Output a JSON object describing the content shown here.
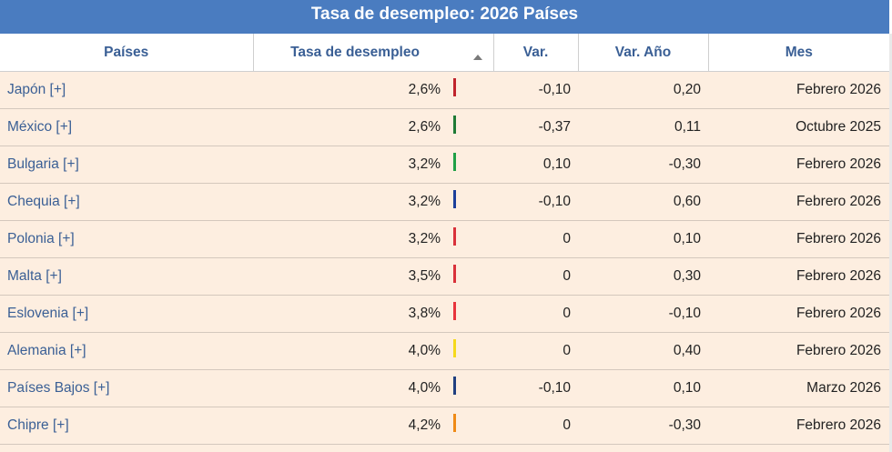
{
  "title": "Tasa de desempleo: 2026 Países",
  "headers": {
    "country": "Países",
    "rate": "Tasa de desempleo",
    "var": "Var.",
    "var_year": "Var. Año",
    "month": "Mes"
  },
  "rows": [
    {
      "country": "Japón [+]",
      "rate": "2,6%",
      "bar_color": "#c0242c",
      "var": "-0,10",
      "var_year": "0,20",
      "month": "Febrero 2026"
    },
    {
      "country": "México [+]",
      "rate": "2,6%",
      "bar_color": "#1e7a35",
      "var": "-0,37",
      "var_year": "0,11",
      "month": "Octubre 2025"
    },
    {
      "country": "Bulgaria [+]",
      "rate": "3,2%",
      "bar_color": "#1fa046",
      "var": "0,10",
      "var_year": "-0,30",
      "month": "Febrero 2026"
    },
    {
      "country": "Chequia [+]",
      "rate": "3,2%",
      "bar_color": "#1c3f9a",
      "var": "-0,10",
      "var_year": "0,60",
      "month": "Febrero 2026"
    },
    {
      "country": "Polonia [+]",
      "rate": "3,2%",
      "bar_color": "#d9313a",
      "var": "0",
      "var_year": "0,10",
      "month": "Febrero 2026"
    },
    {
      "country": "Malta [+]",
      "rate": "3,5%",
      "bar_color": "#d9313a",
      "var": "0",
      "var_year": "0,30",
      "month": "Febrero 2026"
    },
    {
      "country": "Eslovenia [+]",
      "rate": "3,8%",
      "bar_color": "#e8343c",
      "var": "0",
      "var_year": "-0,10",
      "month": "Febrero 2026"
    },
    {
      "country": "Alemania [+]",
      "rate": "4,0%",
      "bar_color": "#f5d91c",
      "var": "0",
      "var_year": "0,40",
      "month": "Febrero 2026"
    },
    {
      "country": "Países Bajos [+]",
      "rate": "4,0%",
      "bar_color": "#203f80",
      "var": "-0,10",
      "var_year": "0,10",
      "month": "Marzo 2026"
    },
    {
      "country": "Chipre [+]",
      "rate": "4,2%",
      "bar_color": "#ef8a17",
      "var": "0",
      "var_year": "-0,30",
      "month": "Febrero 2026"
    }
  ]
}
